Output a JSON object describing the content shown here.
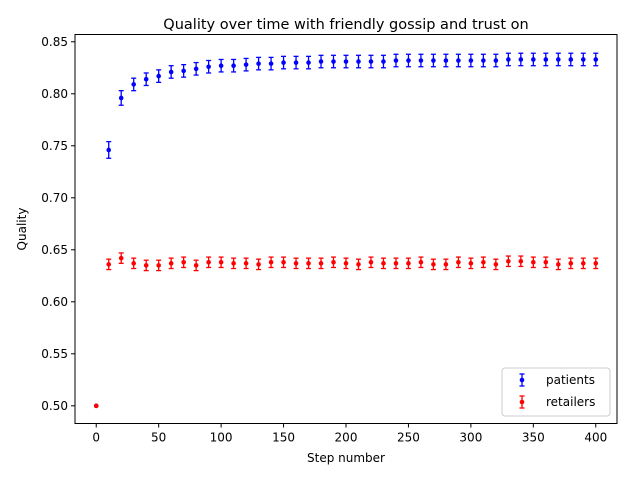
{
  "chart_data": {
    "type": "scatter",
    "title": "Quality over time with friendly gossip and trust on",
    "xlabel": "Step number",
    "ylabel": "Quality",
    "xlim": [
      -17,
      417
    ],
    "ylim": [
      0.483,
      0.857
    ],
    "xticks": [
      0,
      50,
      100,
      150,
      200,
      250,
      300,
      350,
      400
    ],
    "yticks": [
      0.5,
      0.55,
      0.6,
      0.65,
      0.7,
      0.75,
      0.8,
      0.85
    ],
    "ytick_labels": [
      "0.50",
      "0.55",
      "0.60",
      "0.65",
      "0.70",
      "0.75",
      "0.80",
      "0.85"
    ],
    "grid": false,
    "legend": "bottom-right",
    "series": [
      {
        "name": "patients",
        "color": "#0000ff",
        "x": [
          0,
          10,
          20,
          30,
          40,
          50,
          60,
          70,
          80,
          90,
          100,
          110,
          120,
          130,
          140,
          150,
          160,
          170,
          180,
          190,
          200,
          210,
          220,
          230,
          240,
          250,
          260,
          270,
          280,
          290,
          300,
          310,
          320,
          330,
          340,
          350,
          360,
          370,
          380,
          390,
          400
        ],
        "y": [
          0.5,
          0.746,
          0.796,
          0.809,
          0.814,
          0.817,
          0.821,
          0.822,
          0.824,
          0.826,
          0.827,
          0.827,
          0.828,
          0.829,
          0.829,
          0.83,
          0.83,
          0.83,
          0.831,
          0.831,
          0.831,
          0.831,
          0.831,
          0.831,
          0.832,
          0.832,
          0.832,
          0.832,
          0.832,
          0.832,
          0.832,
          0.832,
          0.832,
          0.833,
          0.833,
          0.833,
          0.833,
          0.833,
          0.833,
          0.833,
          0.833
        ],
        "err": [
          0,
          0.008,
          0.007,
          0.006,
          0.006,
          0.006,
          0.006,
          0.006,
          0.006,
          0.006,
          0.006,
          0.006,
          0.006,
          0.006,
          0.006,
          0.006,
          0.006,
          0.006,
          0.006,
          0.006,
          0.006,
          0.006,
          0.006,
          0.006,
          0.006,
          0.006,
          0.006,
          0.006,
          0.006,
          0.006,
          0.006,
          0.006,
          0.006,
          0.006,
          0.006,
          0.006,
          0.006,
          0.006,
          0.006,
          0.006,
          0.006
        ]
      },
      {
        "name": "retailers",
        "color": "#ff0000",
        "x": [
          0,
          10,
          20,
          30,
          40,
          50,
          60,
          70,
          80,
          90,
          100,
          110,
          120,
          130,
          140,
          150,
          160,
          170,
          180,
          190,
          200,
          210,
          220,
          230,
          240,
          250,
          260,
          270,
          280,
          290,
          300,
          310,
          320,
          330,
          340,
          350,
          360,
          370,
          380,
          390,
          400
        ],
        "y": [
          0.5,
          0.636,
          0.642,
          0.637,
          0.635,
          0.635,
          0.637,
          0.638,
          0.635,
          0.638,
          0.638,
          0.637,
          0.637,
          0.636,
          0.638,
          0.638,
          0.637,
          0.637,
          0.637,
          0.638,
          0.637,
          0.636,
          0.638,
          0.637,
          0.637,
          0.637,
          0.638,
          0.636,
          0.636,
          0.638,
          0.637,
          0.638,
          0.636,
          0.639,
          0.639,
          0.638,
          0.638,
          0.636,
          0.637,
          0.637,
          0.637
        ],
        "err": [
          0,
          0.005,
          0.005,
          0.005,
          0.005,
          0.005,
          0.005,
          0.005,
          0.005,
          0.005,
          0.005,
          0.005,
          0.005,
          0.005,
          0.005,
          0.005,
          0.005,
          0.005,
          0.005,
          0.005,
          0.005,
          0.005,
          0.005,
          0.005,
          0.005,
          0.005,
          0.005,
          0.005,
          0.005,
          0.005,
          0.005,
          0.005,
          0.005,
          0.005,
          0.005,
          0.005,
          0.005,
          0.005,
          0.005,
          0.005,
          0.005
        ]
      }
    ]
  }
}
